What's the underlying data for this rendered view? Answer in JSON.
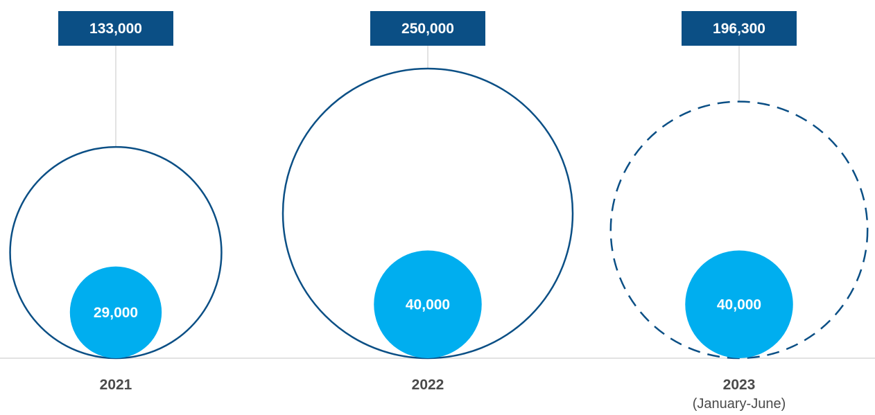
{
  "chart_data": {
    "type": "bubble",
    "categories": [
      "2021",
      "2022",
      "2023"
    ],
    "category_sublabels": [
      "",
      "",
      "(January-June)"
    ],
    "series": [
      {
        "values": [
          133000,
          250000,
          196300
        ],
        "style": [
          "solid",
          "solid",
          "dashed"
        ]
      },
      {
        "values": [
          29000,
          40000,
          40000
        ]
      }
    ],
    "value_labels": {
      "outer": [
        "133,000",
        "250,000",
        "196,300"
      ],
      "inner": [
        "29,000",
        "40,000",
        "40,000"
      ]
    },
    "grid": false,
    "legend": "none",
    "colors": {
      "outer_stroke": "#0b4f85",
      "inner_fill": "#00aeef",
      "callout_fill": "#0b4f85",
      "callout_text": "#ffffff",
      "baseline": "#d9d9d9",
      "leader": "#d9d9d9",
      "year_text": "#4a4a4a"
    }
  }
}
